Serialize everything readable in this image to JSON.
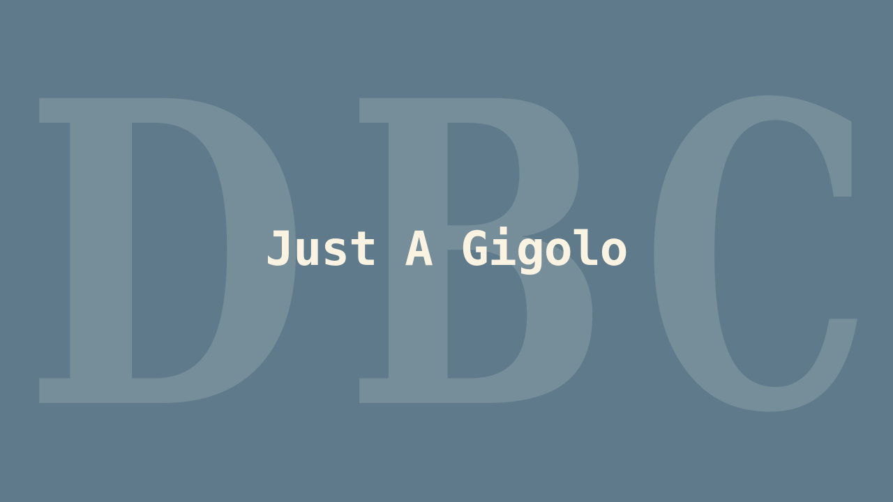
{
  "background": {
    "color": "#5f7b8b",
    "watermark_letters": [
      "D",
      "B",
      "C"
    ],
    "watermark_color": "#768d9a"
  },
  "title": {
    "text": "Just A Gigolo",
    "color": "#fbf3e1"
  }
}
